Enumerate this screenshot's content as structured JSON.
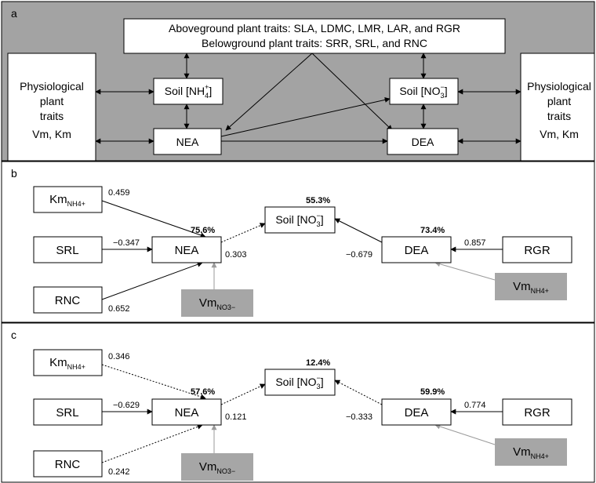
{
  "panel_a": {
    "letter": "a",
    "traits_line1": "Aboveground plant traits: SLA, LDMC, LMR, LAR, and RGR",
    "traits_line2": "Belowground plant traits: SRR, SRL, and RNC",
    "phys_left": [
      "Physiological",
      "plant",
      "traits",
      "Vm, Km"
    ],
    "phys_right": [
      "Physiological",
      "plant",
      "traits",
      "Vm, Km"
    ],
    "soil_nh4_label": "Soil [NH",
    "soil_nh4_sub": "4",
    "soil_nh4_sup": "+",
    "soil_nh4_close": "]",
    "soil_no3_label": "Soil [NO",
    "soil_no3_sub": "3",
    "soil_no3_sup": "−",
    "soil_no3_close": "]",
    "nea": "NEA",
    "dea": "DEA"
  },
  "panel_b": {
    "letter": "b",
    "km_main": "Km",
    "km_sub": "NH4+",
    "srl": "SRL",
    "rnc": "RNC",
    "nea": "NEA",
    "dea": "DEA",
    "rgr": "RGR",
    "soil_label": "Soil [NO",
    "soil_sub": "3",
    "soil_sup": "−",
    "soil_close": "]",
    "vm_left_main": "Vm",
    "vm_left_sub": "NO3−",
    "vm_right_main": "Vm",
    "vm_right_sub": "NH4+",
    "coef_km": "0.459",
    "coef_srl": "−0.347",
    "coef_rnc": "0.652",
    "coef_nea_soil": "0.303",
    "coef_dea_soil": "−0.679",
    "coef_rgr": "0.857",
    "r2_nea": "75.6%",
    "r2_soil": "55.3%",
    "r2_dea": "73.4%"
  },
  "panel_c": {
    "letter": "c",
    "km_main": "Km",
    "km_sub": "NH4+",
    "srl": "SRL",
    "rnc": "RNC",
    "nea": "NEA",
    "dea": "DEA",
    "rgr": "RGR",
    "soil_label": "Soil [NO",
    "soil_sub": "3",
    "soil_sup": "−",
    "soil_close": "]",
    "vm_left_main": "Vm",
    "vm_left_sub": "NO3−",
    "vm_right_main": "Vm",
    "vm_right_sub": "NH4+",
    "coef_km": "0.346",
    "coef_srl": "−0.629",
    "coef_rnc": "0.242",
    "coef_nea_soil": "0.121",
    "coef_dea_soil": "−0.333",
    "coef_rgr": "0.774",
    "r2_nea": "57.6%",
    "r2_soil": "12.4%",
    "r2_dea": "59.9%"
  },
  "colors": {
    "panel_bg": "#a3a3a3",
    "box_gray": "#a6a6a6",
    "arrow_gray": "#9a9a9a",
    "black": "#000000"
  }
}
